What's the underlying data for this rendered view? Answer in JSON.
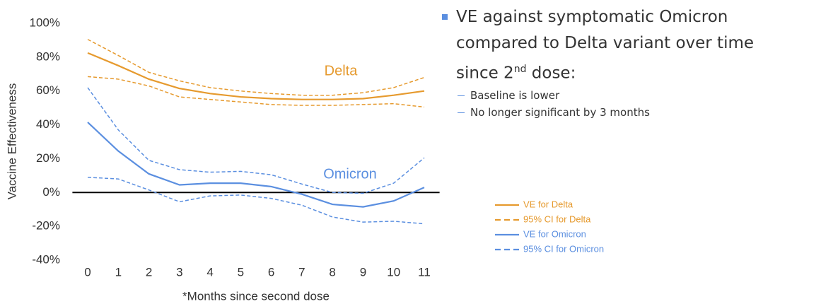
{
  "chart_data": {
    "type": "line",
    "y_label": "Vaccine Effectiveness",
    "x_label": "*Months since second dose",
    "x": [
      0,
      1,
      2,
      3,
      4,
      5,
      6,
      7,
      8,
      9,
      10,
      11
    ],
    "xlim": [
      -0.5,
      11.5
    ],
    "xticks": [
      0,
      1,
      2,
      3,
      4,
      5,
      6,
      7,
      8,
      9,
      10,
      11
    ],
    "ylim": [
      -40,
      100
    ],
    "yticks": [
      {
        "value": -40,
        "label": "-40%"
      },
      {
        "value": -20,
        "label": "-20%"
      },
      {
        "value": 0,
        "label": "0%"
      },
      {
        "value": 20,
        "label": "20%"
      },
      {
        "value": 40,
        "label": "40%"
      },
      {
        "value": 60,
        "label": "60%"
      },
      {
        "value": 80,
        "label": "80%"
      },
      {
        "value": 100,
        "label": "100%"
      }
    ],
    "annotations": [
      "Delta",
      "Omicron"
    ],
    "series": [
      {
        "name": "VE for Delta",
        "color": "#e69a2e",
        "dashed": false,
        "values": [
          82.5,
          75,
          67,
          61.5,
          58.5,
          56.5,
          55.5,
          55,
          55,
          55.5,
          57.5,
          60
        ]
      },
      {
        "name": "95% CI for Delta",
        "color": "#e69a2e",
        "dashed": true,
        "upper": [
          90.5,
          81,
          71,
          66,
          62,
          60,
          58.5,
          57.5,
          57.5,
          59,
          62,
          68
        ],
        "lower": [
          68.5,
          67,
          63,
          56.5,
          55,
          53.5,
          52,
          51.5,
          51.5,
          52,
          52.5,
          50.5
        ]
      },
      {
        "name": "VE for Omicron",
        "color": "#5b8fe0",
        "dashed": false,
        "values": [
          41.5,
          24.5,
          11,
          4.5,
          5.5,
          5.5,
          3.5,
          -1,
          -7,
          -8.5,
          -5,
          3
        ]
      },
      {
        "name": "95% CI for Omicron",
        "color": "#5b8fe0",
        "dashed": true,
        "upper": [
          62,
          37,
          19,
          13.5,
          12,
          12.5,
          10.5,
          5,
          0,
          -0.5,
          5.5,
          20.5
        ],
        "lower": [
          9,
          8,
          1.5,
          -5.5,
          -2,
          -1.5,
          -3.5,
          -7.5,
          -14.5,
          -17.5,
          -17,
          -18.5
        ]
      }
    ]
  },
  "notes": {
    "heading": [
      "VE against symptomatic Omicron",
      "compared to Delta variant over time"
    ],
    "heading_last": {
      "text": "since 2",
      "sup": "nd",
      "tail": " dose:"
    },
    "items": [
      "Baseline is lower",
      "No longer significant by 3 months"
    ]
  }
}
